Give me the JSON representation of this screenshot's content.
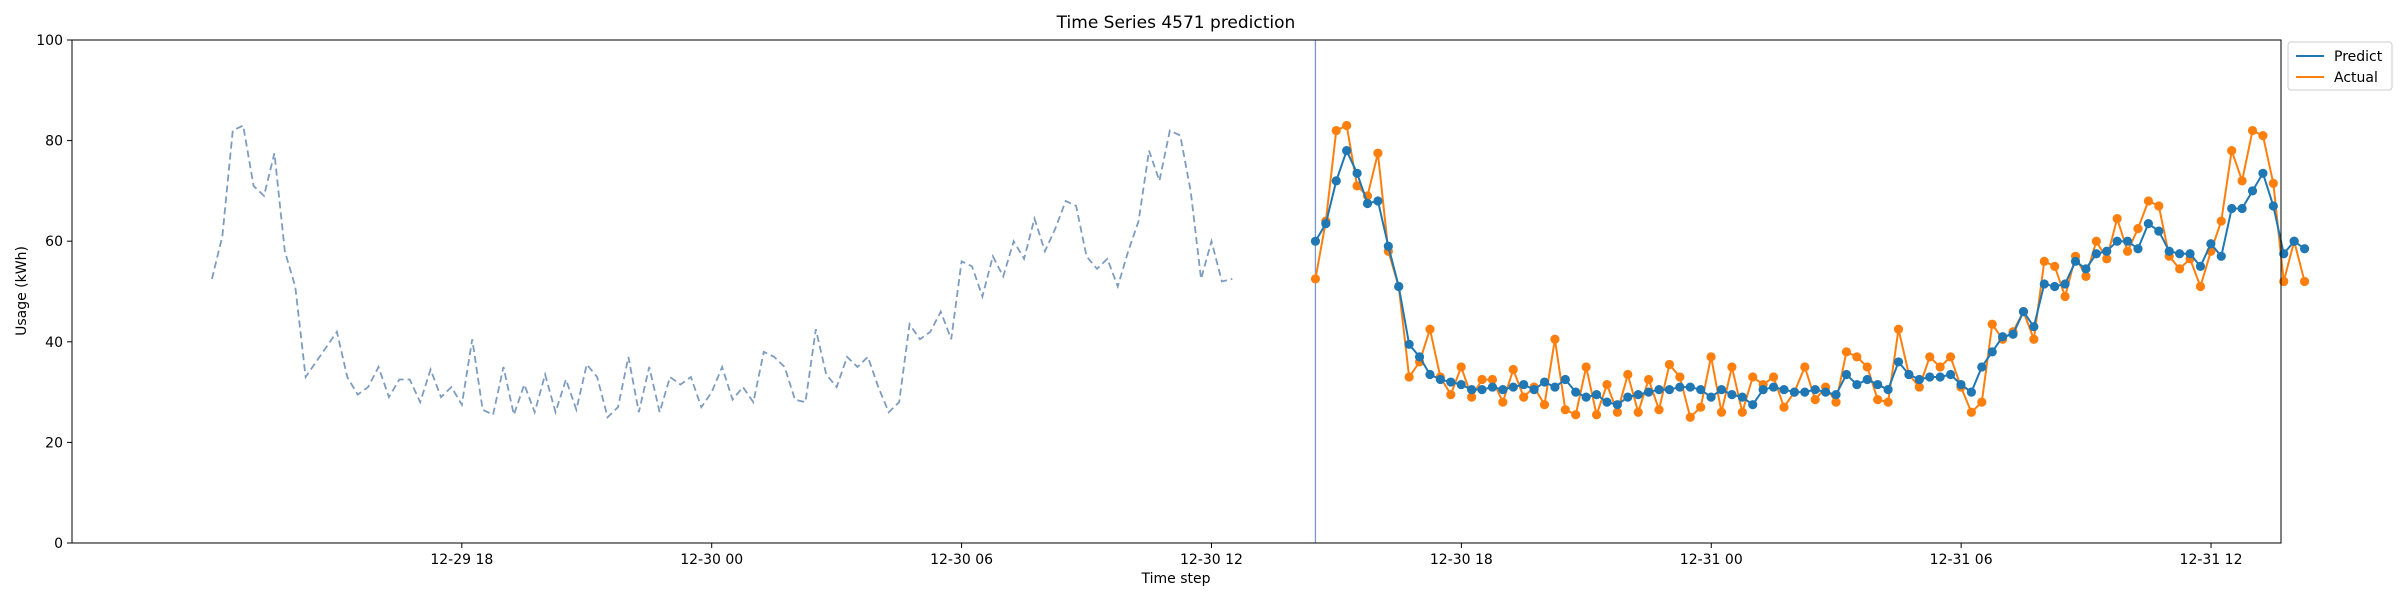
{
  "chart_data": {
    "type": "line",
    "title": "Time Series 4571 prediction",
    "xlabel": "Time step",
    "ylabel": "Usage (kWh)",
    "ylim": [
      0,
      100
    ],
    "yticks": [
      0,
      20,
      40,
      60,
      80,
      100
    ],
    "xlim": [
      -0.14,
      2.07
    ],
    "xticks": [
      {
        "pos": 0.25,
        "label": "12-29 18"
      },
      {
        "pos": 0.5,
        "label": "12-30 00"
      },
      {
        "pos": 0.75,
        "label": "12-30 06"
      },
      {
        "pos": 1.0,
        "label": "12-30 12"
      },
      {
        "pos": 1.25,
        "label": "12-30 18"
      },
      {
        "pos": 1.5,
        "label": "12-31 00"
      },
      {
        "pos": 1.75,
        "label": "12-31 06"
      },
      {
        "pos": 2.0,
        "label": "12-31 12"
      }
    ],
    "x_step": 0.0104167,
    "forecast_start_x": 1.104,
    "legend": {
      "placement": "outside-top-right"
    },
    "colors": {
      "history": "#7e9cc0",
      "predict": "#1f77b4",
      "actual": "#ff7f0e",
      "split_line": "#7b96c8"
    },
    "history": {
      "x_start": 0.0,
      "values": [
        52.5,
        61,
        82,
        83,
        71,
        69,
        77.5,
        58,
        51,
        33,
        36,
        39,
        42,
        33,
        29.5,
        31,
        35,
        29,
        32.5,
        32.5,
        28,
        34.5,
        29,
        31,
        27.5,
        40.5,
        26.5,
        25.5,
        35,
        25.5,
        31.5,
        26,
        33.5,
        26,
        32.5,
        26.5,
        35.5,
        33,
        25,
        27,
        37,
        26,
        35,
        26,
        33,
        31.5,
        33,
        27,
        30,
        35,
        28.5,
        31,
        28,
        38,
        37,
        35,
        28.5,
        28,
        42.5,
        33.5,
        31,
        37,
        35,
        37,
        31,
        26,
        28,
        43.5,
        40.5,
        42,
        46,
        40.5,
        56,
        55,
        49,
        57,
        53,
        60,
        56.5,
        64.5,
        58,
        62.5,
        68,
        67,
        57,
        54.5,
        56.5,
        51,
        58,
        64,
        78,
        72,
        82,
        81,
        70,
        52.5,
        60,
        52,
        52.5
      ]
    },
    "series": [
      {
        "name": "Predict",
        "x_start": 1.0,
        "values": [
          60,
          63.5,
          72,
          78,
          73.5,
          67.5,
          68,
          59,
          51,
          39.5,
          37,
          33.5,
          32.5,
          32,
          31.5,
          30.5,
          30.5,
          31,
          30.5,
          31,
          31.5,
          30.5,
          32,
          31,
          32.5,
          30,
          29,
          29.5,
          28,
          27.5,
          29,
          29.5,
          30,
          30.5,
          30.5,
          31,
          31,
          30.5,
          29,
          30.5,
          29.5,
          29,
          27.5,
          30.5,
          31,
          30.5,
          30,
          30,
          30.5,
          30,
          29.5,
          33.5,
          31.5,
          32.5,
          31.5,
          30.5,
          36,
          33.5,
          32.5,
          33,
          33,
          33.5,
          31.5,
          30,
          35,
          38,
          41,
          41.5,
          46,
          43,
          51.5,
          51,
          51.5,
          56,
          54.5,
          57.5,
          58,
          60,
          60,
          58.5,
          63.5,
          62,
          58,
          57.5,
          57.5,
          55,
          59.5,
          57,
          66.5,
          66.5,
          70,
          73.5,
          67,
          57.5,
          60,
          58.5
        ]
      },
      {
        "name": "Actual",
        "x_start": 1.0,
        "values": [
          52.5,
          64,
          82,
          83,
          71,
          69,
          77.5,
          58,
          51,
          33,
          36,
          42.5,
          33,
          29.5,
          35,
          29,
          32.5,
          32.5,
          28,
          34.5,
          29,
          31,
          27.5,
          40.5,
          26.5,
          25.5,
          35,
          25.5,
          31.5,
          26,
          33.5,
          26,
          32.5,
          26.5,
          35.5,
          33,
          25,
          27,
          37,
          26,
          35,
          26,
          33,
          31.5,
          33,
          27,
          30,
          35,
          28.5,
          31,
          28,
          38,
          37,
          35,
          28.5,
          28,
          42.5,
          33.5,
          31,
          37,
          35,
          37,
          31,
          26,
          28,
          43.5,
          40.5,
          42,
          46,
          40.5,
          56,
          55,
          49,
          57,
          53,
          60,
          56.5,
          64.5,
          58,
          62.5,
          68,
          67,
          57,
          54.5,
          56.5,
          51,
          58,
          64,
          78,
          72,
          82,
          81,
          71.5,
          52,
          60,
          52
        ]
      }
    ]
  }
}
